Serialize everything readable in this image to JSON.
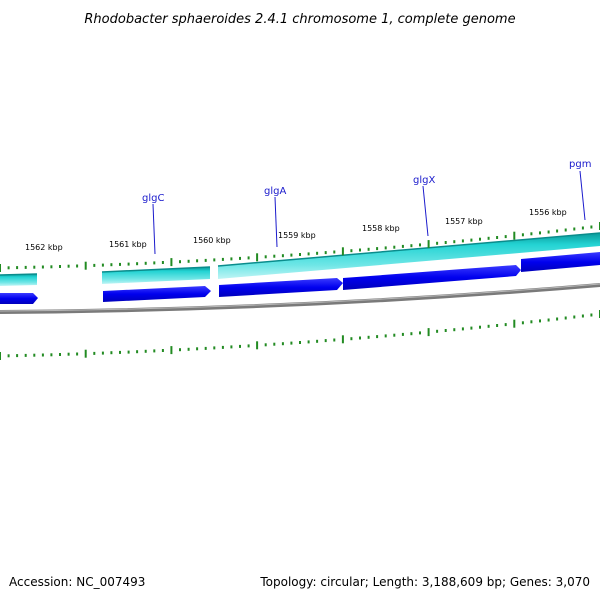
{
  "header": {
    "title": "Rhodobacter sphaeroides 2.4.1 chromosome 1, complete genome"
  },
  "footer": {
    "accession": "Accession: NC_007493",
    "summary": "Topology: circular; Length: 3,188,609 bp; Genes: 3,070"
  },
  "colors": {
    "backbone": "#888888",
    "tick": "#228b22",
    "cds_forward": "#0000ee",
    "gene_reverse": "#1fd0d0",
    "gene_reverse_edge": "#0a8c8c",
    "label": "#1a1acc"
  },
  "genome_map": {
    "kbp_labels": [
      {
        "kbp": 1562,
        "text": "1562 kbp"
      },
      {
        "kbp": 1561,
        "text": "1561 kbp"
      },
      {
        "kbp": 1560,
        "text": "1560 kbp"
      },
      {
        "kbp": 1559,
        "text": "1559 kbp"
      },
      {
        "kbp": 1558,
        "text": "1558 kbp"
      },
      {
        "kbp": 1557,
        "text": "1557 kbp"
      },
      {
        "kbp": 1556,
        "text": "1556 kbp"
      }
    ],
    "gene_labels": [
      {
        "name": "glgC"
      },
      {
        "name": "glgA"
      },
      {
        "name": "glgX"
      },
      {
        "name": "pgm"
      }
    ]
  }
}
